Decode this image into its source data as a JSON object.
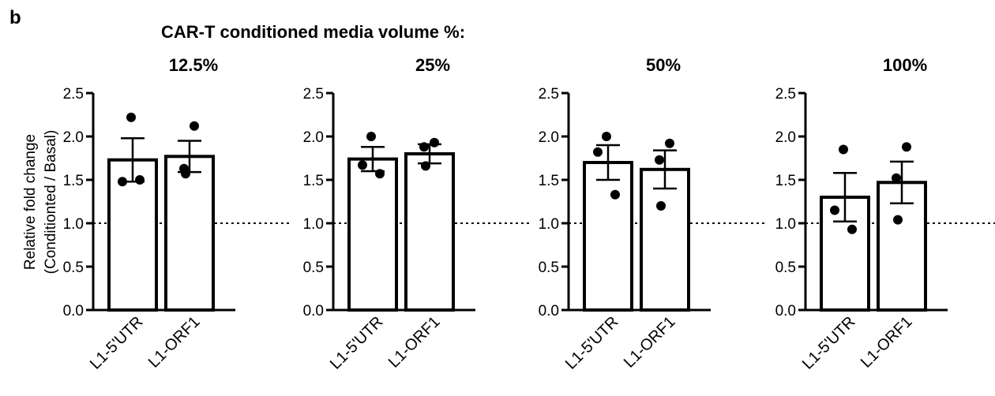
{
  "panel_letter": "b",
  "super_title": "CAR-T conditioned media volume %:",
  "ylabel_line1": "Relative fold change",
  "ylabel_line2": "(Conditionted / Basal)",
  "colors": {
    "bar_fill": "#ffffff",
    "stroke": "#000000",
    "points": "#000000"
  },
  "chart_data": [
    {
      "type": "bar",
      "title": "12.5%",
      "categories": [
        "L1-5'UTR",
        "L1-ORF1"
      ],
      "values": [
        1.73,
        1.77
      ],
      "sem": [
        0.25,
        0.18
      ],
      "points": [
        [
          2.22,
          1.48,
          1.5
        ],
        [
          2.12,
          1.63,
          1.57
        ]
      ],
      "ylim": [
        0,
        2.5
      ],
      "yticks": [
        "0.0",
        "0.5",
        "1.0",
        "1.5",
        "2.0",
        "2.5"
      ],
      "reference_line": 1.0,
      "show_ylabel": true
    },
    {
      "type": "bar",
      "title": "25%",
      "categories": [
        "L1-5'UTR",
        "L1-ORF1"
      ],
      "values": [
        1.74,
        1.8
      ],
      "sem": [
        0.14,
        0.11
      ],
      "points": [
        [
          2.0,
          1.67,
          1.57
        ],
        [
          1.93,
          1.88,
          1.66
        ]
      ],
      "ylim": [
        0,
        2.5
      ],
      "yticks": [
        "0.0",
        "0.5",
        "1.0",
        "1.5",
        "2.0",
        "2.5"
      ],
      "reference_line": 1.0,
      "show_ylabel": false
    },
    {
      "type": "bar",
      "title": "50%",
      "categories": [
        "L1-5'UTR",
        "L1-ORF1"
      ],
      "values": [
        1.7,
        1.62
      ],
      "sem": [
        0.2,
        0.22
      ],
      "points": [
        [
          2.0,
          1.82,
          1.33
        ],
        [
          1.92,
          1.73,
          1.2
        ]
      ],
      "ylim": [
        0,
        2.5
      ],
      "yticks": [
        "0.0",
        "0.5",
        "1.0",
        "1.5",
        "2.0",
        "2.5"
      ],
      "reference_line": 1.0,
      "show_ylabel": false
    },
    {
      "type": "bar",
      "title": "100%",
      "categories": [
        "L1-5'UTR",
        "L1-ORF1"
      ],
      "values": [
        1.3,
        1.47
      ],
      "sem": [
        0.28,
        0.24
      ],
      "points": [
        [
          1.85,
          1.15,
          0.93
        ],
        [
          1.88,
          1.52,
          1.04
        ]
      ],
      "ylim": [
        0,
        2.5
      ],
      "yticks": [
        "0.0",
        "0.5",
        "1.0",
        "1.5",
        "2.0",
        "2.5"
      ],
      "reference_line": 1.0,
      "show_ylabel": false
    }
  ]
}
